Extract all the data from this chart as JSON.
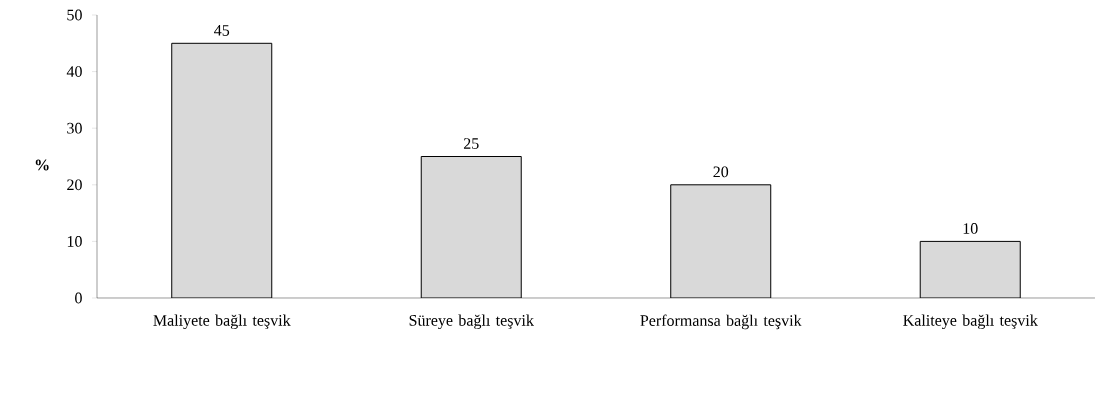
{
  "chart_data": {
    "type": "bar",
    "ylabel": "%",
    "categories": [
      "Maliyete bağlı teşvik",
      "Süreye bağlı teşvik",
      "Performansa bağlı teşvik",
      "Kaliteye bağlı teşvik"
    ],
    "values": [
      45,
      25,
      20,
      10
    ],
    "color": "#d9d9d9",
    "ylim": [
      0,
      50
    ],
    "yticks": [
      0,
      10,
      20,
      30,
      40,
      50
    ],
    "data_labels": true
  }
}
